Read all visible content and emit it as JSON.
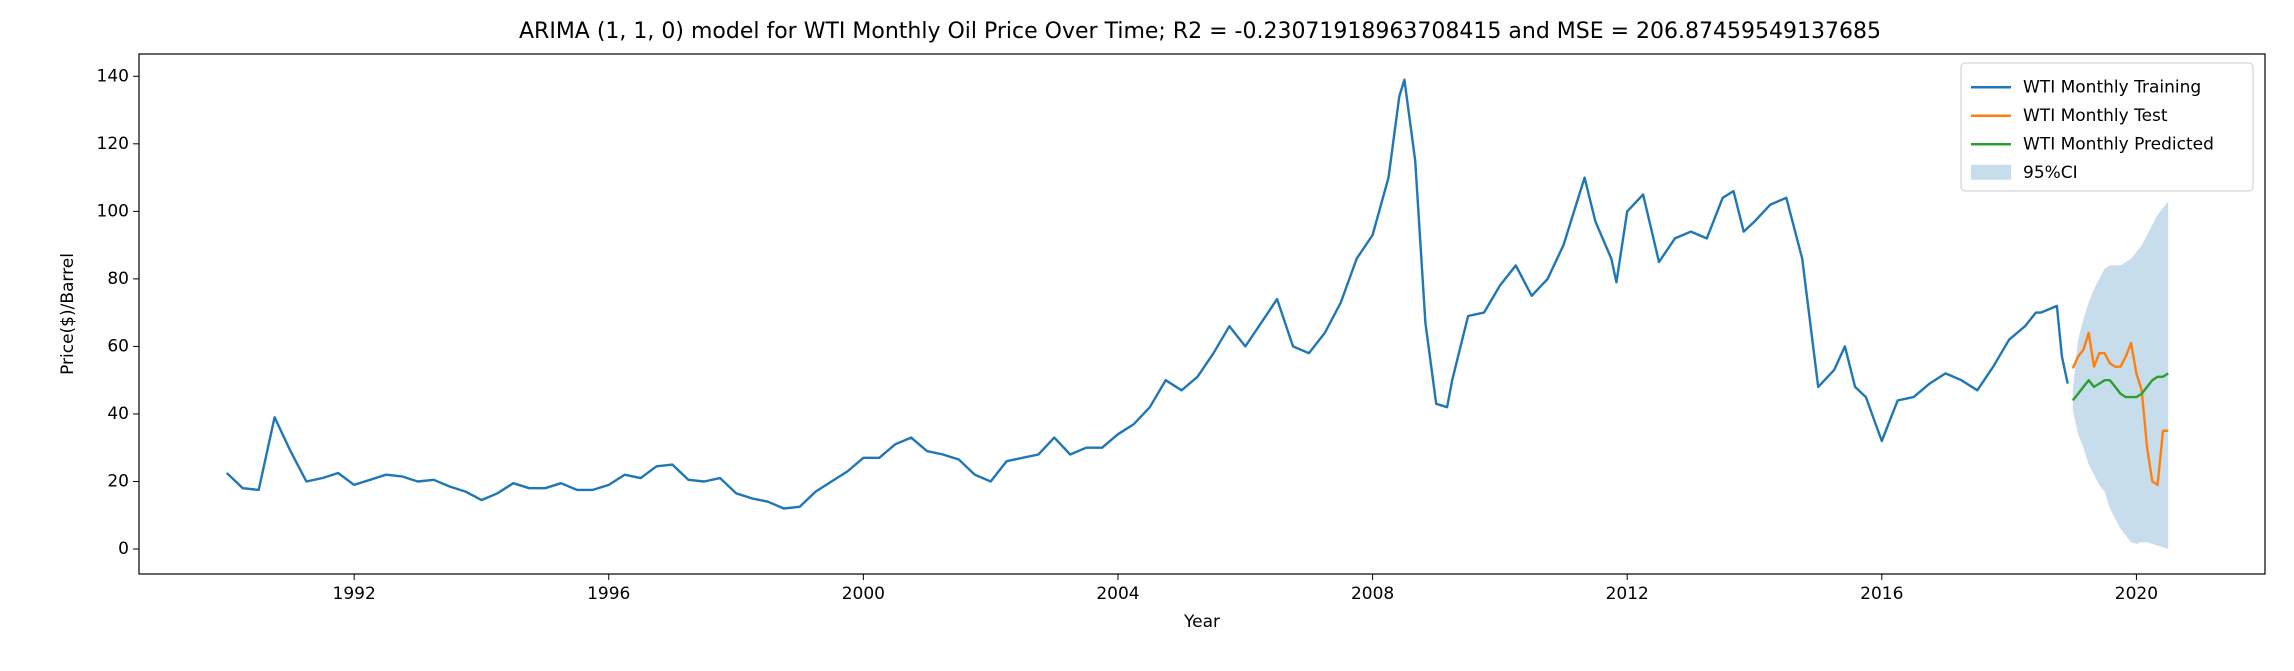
{
  "chart_data": {
    "type": "line",
    "title": "ARIMA (1, 1, 0) model for WTI Monthly Oil Price Over Time; R2 = -0.23071918963708415 and MSE = 206.87459549137685",
    "xlabel": "Year",
    "ylabel": "Price($)/Barrel",
    "xlim": [
      1988.62,
      2022.02
    ],
    "ylim": [
      -7.4,
      146.6
    ],
    "xticks": [
      1992,
      1996,
      2000,
      2004,
      2008,
      2012,
      2016,
      2020
    ],
    "yticks": [
      0,
      20,
      40,
      60,
      80,
      100,
      120,
      140
    ],
    "grid": false,
    "legend": "upper right",
    "series": [
      {
        "name": "WTI Monthly Training",
        "color": "#1f77b4",
        "x": [
          1990.0,
          1990.25,
          1990.5,
          1990.75,
          1991.0,
          1991.25,
          1991.5,
          1991.75,
          1992.0,
          1992.25,
          1992.5,
          1992.75,
          1993.0,
          1993.25,
          1993.5,
          1993.75,
          1994.0,
          1994.25,
          1994.5,
          1994.75,
          1995.0,
          1995.25,
          1995.5,
          1995.75,
          1996.0,
          1996.25,
          1996.5,
          1996.75,
          1997.0,
          1997.25,
          1997.5,
          1997.75,
          1998.0,
          1998.25,
          1998.5,
          1998.75,
          1999.0,
          1999.25,
          1999.5,
          1999.75,
          2000.0,
          2000.25,
          2000.5,
          2000.75,
          2001.0,
          2001.25,
          2001.5,
          2001.75,
          2002.0,
          2002.25,
          2002.5,
          2002.75,
          2003.0,
          2003.25,
          2003.5,
          2003.75,
          2004.0,
          2004.25,
          2004.5,
          2004.75,
          2005.0,
          2005.25,
          2005.5,
          2005.75,
          2006.0,
          2006.25,
          2006.5,
          2006.75,
          2007.0,
          2007.25,
          2007.5,
          2007.75,
          2008.0,
          2008.25,
          2008.42,
          2008.5,
          2008.67,
          2008.83,
          2009.0,
          2009.17,
          2009.25,
          2009.5,
          2009.75,
          2010.0,
          2010.25,
          2010.5,
          2010.75,
          2011.0,
          2011.33,
          2011.5,
          2011.75,
          2011.83,
          2012.0,
          2012.25,
          2012.5,
          2012.75,
          2013.0,
          2013.25,
          2013.5,
          2013.67,
          2013.83,
          2014.0,
          2014.25,
          2014.5,
          2014.75,
          2015.0,
          2015.25,
          2015.42,
          2015.58,
          2015.75,
          2016.0,
          2016.25,
          2016.5,
          2016.75,
          2017.0,
          2017.25,
          2017.5,
          2017.75,
          2018.0,
          2018.25,
          2018.42,
          2018.5,
          2018.75,
          2018.83,
          2018.92
        ],
        "values": [
          22.5,
          18,
          17.5,
          39,
          29,
          20,
          21,
          22.5,
          19,
          20.5,
          22,
          21.5,
          20,
          20.5,
          18.5,
          17,
          14.5,
          16.5,
          19.5,
          18,
          18,
          19.5,
          17.5,
          17.5,
          19,
          22,
          21,
          24.5,
          25,
          20.5,
          20,
          21,
          16.5,
          15,
          14,
          12,
          12.5,
          17,
          20,
          23,
          27,
          27,
          31,
          33,
          29,
          28,
          26.5,
          22,
          20,
          26,
          27,
          28,
          33,
          28,
          30,
          30,
          34,
          37,
          42,
          50,
          47,
          51,
          58,
          66,
          60,
          67,
          74,
          60,
          58,
          64,
          73,
          86,
          93,
          110,
          134,
          139,
          115,
          67,
          43,
          42,
          50,
          69,
          70,
          78,
          84,
          75,
          80,
          90,
          110,
          97,
          86,
          79,
          100,
          105,
          85,
          92,
          94,
          92,
          104,
          106,
          94,
          97,
          102,
          104,
          86,
          48,
          53,
          60,
          48,
          45,
          32,
          44,
          45,
          49,
          52,
          50,
          47,
          54,
          62,
          66,
          70,
          70,
          72,
          57,
          49
        ]
      },
      {
        "name": "WTI Monthly Test",
        "color": "#ff7f0e",
        "x": [
          2019.0,
          2019.083,
          2019.167,
          2019.25,
          2019.333,
          2019.417,
          2019.5,
          2019.583,
          2019.667,
          2019.75,
          2019.833,
          2019.917,
          2020.0,
          2020.083,
          2020.167,
          2020.25,
          2020.333,
          2020.417,
          2020.5
        ],
        "values": [
          53.5,
          57,
          59,
          64,
          54,
          58,
          58,
          55,
          54,
          54,
          57,
          61,
          52,
          47,
          30,
          20,
          19,
          35,
          35
        ]
      },
      {
        "name": "WTI Monthly Predicted",
        "color": "#2ca02c",
        "x": [
          2019.0,
          2019.083,
          2019.167,
          2019.25,
          2019.333,
          2019.417,
          2019.5,
          2019.583,
          2019.667,
          2019.75,
          2019.833,
          2019.917,
          2020.0,
          2020.083,
          2020.167,
          2020.25,
          2020.333,
          2020.417,
          2020.5
        ],
        "values": [
          44,
          46,
          48,
          50,
          48,
          49,
          50,
          50,
          48,
          46,
          45,
          45,
          45,
          46,
          48,
          50,
          51,
          51,
          52
        ]
      },
      {
        "name": "95%CI",
        "color": "#1f77b4",
        "kind": "band",
        "x": [
          2019.0,
          2019.083,
          2019.167,
          2019.25,
          2019.333,
          2019.417,
          2019.5,
          2019.583,
          2019.667,
          2019.75,
          2019.833,
          2019.917,
          2020.0,
          2020.083,
          2020.167,
          2020.25,
          2020.333,
          2020.417,
          2020.5
        ],
        "lower": [
          41,
          34,
          30,
          25,
          22,
          19,
          17,
          12,
          9,
          6,
          4,
          2,
          1.5,
          2,
          2,
          1.5,
          1,
          0.5,
          0
        ],
        "upper": [
          47,
          62,
          68,
          73,
          77,
          80,
          83,
          84,
          84,
          84,
          85,
          86,
          88,
          90,
          93,
          96,
          99,
          101,
          103
        ]
      }
    ]
  }
}
